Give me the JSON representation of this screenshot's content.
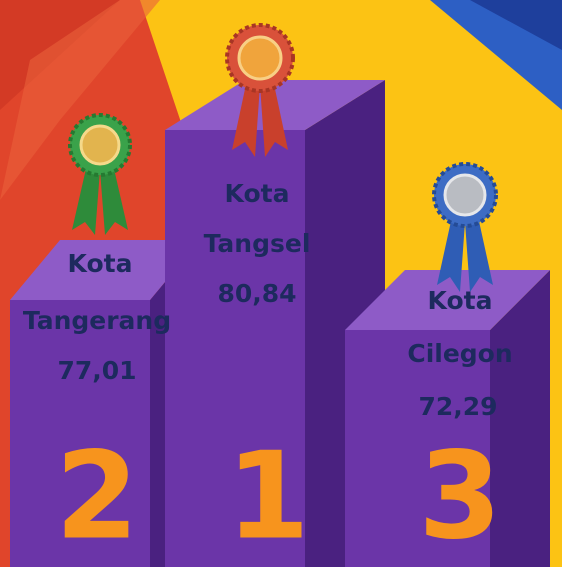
{
  "podiums": [
    {
      "label": [
        "Kota",
        "Tangerang"
      ],
      "value": "77,01",
      "rank": "2"
    },
    {
      "label": [
        "Kota",
        "Tangsel"
      ],
      "value": "80,84",
      "rank": "1"
    },
    {
      "label": [
        "Kota",
        "Cilegon"
      ],
      "value": "72,29",
      "rank": "3"
    }
  ]
}
